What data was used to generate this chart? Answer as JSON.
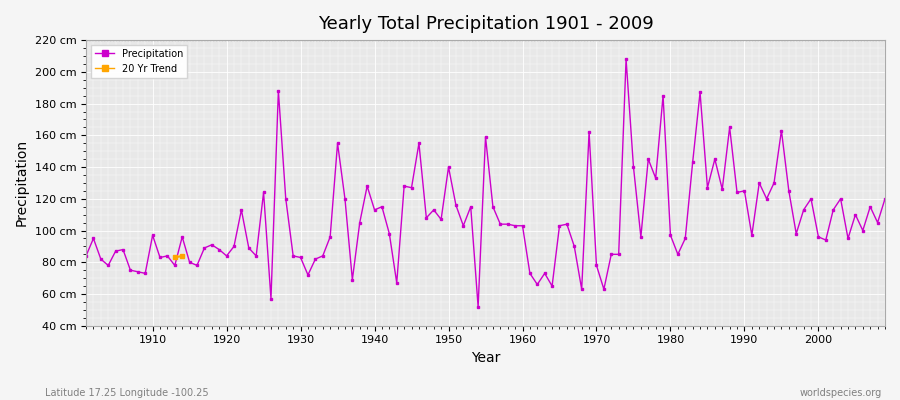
{
  "title": "Yearly Total Precipitation 1901 - 2009",
  "xlabel": "Year",
  "ylabel": "Precipitation",
  "subtitle": "Latitude 17.25 Longitude -100.25",
  "watermark": "worldspecies.org",
  "ylim": [
    40,
    220
  ],
  "xlim": [
    1901,
    2009
  ],
  "yticks": [
    40,
    60,
    80,
    100,
    120,
    140,
    160,
    180,
    200,
    220
  ],
  "ytick_labels": [
    "40 cm",
    "60 cm",
    "80 cm",
    "100 cm",
    "120 cm",
    "140 cm",
    "160 cm",
    "180 cm",
    "200 cm",
    "220 cm"
  ],
  "xticks": [
    1910,
    1920,
    1930,
    1940,
    1950,
    1960,
    1970,
    1980,
    1990,
    2000
  ],
  "precipitation_color": "#cc00cc",
  "trend_color": "#ffa500",
  "years": [
    1901,
    1902,
    1903,
    1904,
    1905,
    1906,
    1907,
    1908,
    1909,
    1910,
    1911,
    1912,
    1913,
    1914,
    1915,
    1916,
    1917,
    1918,
    1919,
    1920,
    1921,
    1922,
    1923,
    1924,
    1925,
    1926,
    1927,
    1928,
    1929,
    1930,
    1931,
    1932,
    1933,
    1934,
    1935,
    1936,
    1937,
    1938,
    1939,
    1940,
    1941,
    1942,
    1943,
    1944,
    1945,
    1946,
    1947,
    1948,
    1949,
    1950,
    1951,
    1952,
    1953,
    1954,
    1955,
    1956,
    1957,
    1958,
    1959,
    1960,
    1961,
    1962,
    1963,
    1964,
    1965,
    1966,
    1967,
    1968,
    1969,
    1970,
    1971,
    1972,
    1973,
    1974,
    1975,
    1976,
    1977,
    1978,
    1979,
    1980,
    1981,
    1982,
    1983,
    1984,
    1985,
    1986,
    1987,
    1988,
    1989,
    1990,
    1991,
    1992,
    1993,
    1994,
    1995,
    1996,
    1997,
    1998,
    1999,
    2000,
    2001,
    2002,
    2003,
    2004,
    2005,
    2006,
    2007,
    2008,
    2009
  ],
  "precip": [
    84,
    95,
    82,
    78,
    87,
    88,
    75,
    74,
    73,
    97,
    83,
    84,
    78,
    96,
    80,
    78,
    89,
    91,
    88,
    84,
    90,
    113,
    89,
    84,
    124,
    57,
    188,
    120,
    84,
    83,
    72,
    82,
    84,
    96,
    155,
    120,
    69,
    105,
    128,
    113,
    115,
    98,
    67,
    128,
    127,
    155,
    108,
    113,
    107,
    140,
    116,
    103,
    115,
    52,
    159,
    115,
    104,
    104,
    103,
    103,
    73,
    66,
    73,
    65,
    103,
    104,
    90,
    63,
    162,
    78,
    63,
    85,
    85,
    208,
    140,
    96,
    145,
    133,
    185,
    97,
    85,
    95,
    143,
    187,
    127,
    145,
    126,
    165,
    124,
    125,
    97,
    130,
    120,
    130,
    163,
    125,
    98,
    113,
    120,
    96,
    94,
    113,
    120,
    95,
    110,
    100,
    115,
    105,
    120
  ],
  "trend_years": [
    1913,
    1914
  ],
  "trend_values": [
    83,
    84
  ]
}
